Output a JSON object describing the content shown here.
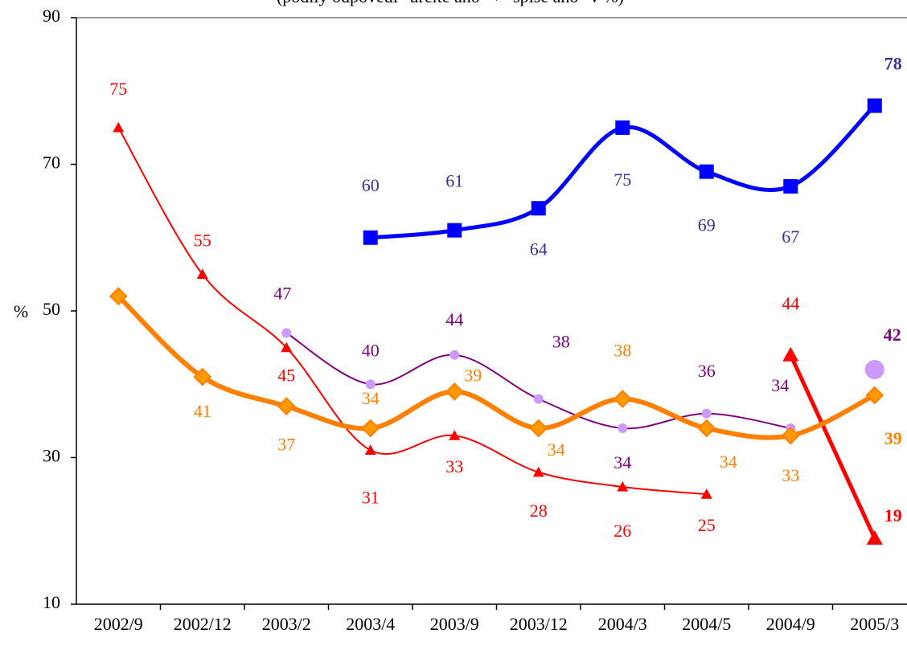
{
  "chart_data": {
    "type": "line",
    "subtitle": "(podíly odpovědí \"určitě ano\" + \"spíše ano\" v %)",
    "y_label": "%",
    "categories": [
      "2002/9",
      "2002/12",
      "2003/2",
      "2003/4",
      "2003/9",
      "2003/12",
      "2004/3",
      "2004/5",
      "2004/9",
      "2005/3"
    ],
    "ylim": [
      10,
      90
    ],
    "yticks": [
      10,
      30,
      50,
      70,
      90
    ],
    "series": [
      {
        "color": "#0000ff",
        "label_color": "#333399",
        "marker": "square",
        "width": 5,
        "values": [
          null,
          null,
          null,
          60,
          61,
          64,
          75,
          69,
          67,
          78
        ]
      },
      {
        "color": "#ff0000",
        "label_color": "#ff0000",
        "marker": "triangle",
        "width": 2,
        "values": [
          75,
          55,
          45,
          31,
          33,
          28,
          26,
          25,
          null,
          null
        ]
      },
      {
        "color": "#ff0000",
        "label_color": "#ff0000",
        "marker": "triangle",
        "width": 5,
        "values": [
          null,
          null,
          null,
          null,
          null,
          null,
          null,
          null,
          44,
          19
        ]
      },
      {
        "color": "#800080",
        "label_color": "#800080",
        "marker": "circle",
        "width": 2,
        "values": [
          52,
          null,
          47,
          40,
          44,
          38,
          34,
          36,
          34,
          null
        ]
      },
      {
        "color": "#cc99ff",
        "label_color": "#800080",
        "marker": "bigcircle",
        "width": 0,
        "values": [
          null,
          null,
          null,
          null,
          null,
          null,
          null,
          null,
          null,
          42
        ]
      },
      {
        "color": "#ff7f00",
        "label_color": "#ff7f00",
        "marker": "diamond",
        "width": 6,
        "values": [
          52,
          41,
          37,
          34,
          39,
          34,
          38,
          34,
          33,
          38.5
        ],
        "value_labels": [
          null,
          "41",
          "37",
          "34",
          "39",
          "34",
          "38",
          "34",
          "33",
          "39"
        ]
      }
    ]
  }
}
